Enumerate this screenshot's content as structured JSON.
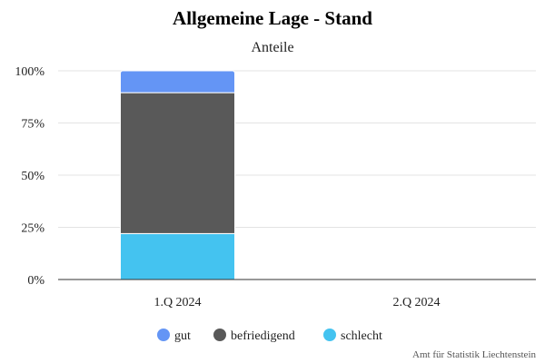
{
  "chart_data": {
    "type": "bar",
    "stacked": true,
    "title": "Allgemeine Lage - Stand",
    "subtitle": "Anteile",
    "categories": [
      "1.Q 2024",
      "2.Q 2024"
    ],
    "y_ticks": [
      "0%",
      "25%",
      "50%",
      "75%",
      "100%"
    ],
    "ylim": [
      0,
      100
    ],
    "grid": true,
    "legend_position": "bottom",
    "series": [
      {
        "name": "schlecht",
        "color": "#44c3f0",
        "values": [
          22,
          null
        ]
      },
      {
        "name": "befriedigend",
        "color": "#595959",
        "values": [
          67.5,
          null
        ]
      },
      {
        "name": "gut",
        "color": "#6495f5",
        "values": [
          10.5,
          null
        ]
      }
    ],
    "legend": [
      {
        "name": "gut",
        "color": "#6495f5"
      },
      {
        "name": "befriedigend",
        "color": "#595959"
      },
      {
        "name": "schlecht",
        "color": "#44c3f0"
      }
    ],
    "credit": "Amt für Statistik Liechtenstein"
  }
}
